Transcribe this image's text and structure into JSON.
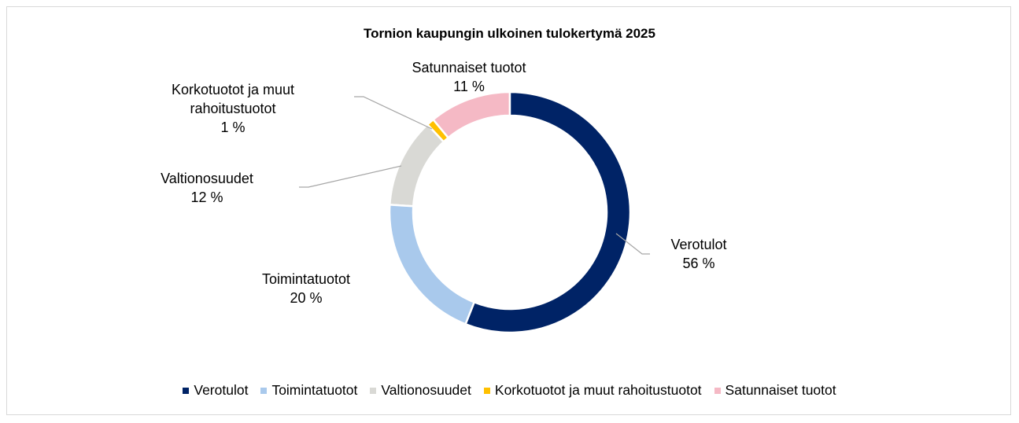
{
  "chart_data": {
    "type": "donut",
    "title": "Tornion kaupungin ulkoinen tulokertymä 2025",
    "categories": [
      "Verotulot",
      "Toimintatuotot",
      "Valtionosuudet",
      "Korkotuotot ja muut rahoitustuotot",
      "Satunnaiset tuotot"
    ],
    "values": [
      56,
      20,
      12,
      1,
      11
    ],
    "value_labels": [
      "56 %",
      "20 %",
      "12 %",
      "1 %",
      "11 %"
    ],
    "colors": [
      "#002366",
      "#a9c9ec",
      "#d9d9d5",
      "#ffc000",
      "#f5b9c5"
    ],
    "legend": "bottom"
  }
}
